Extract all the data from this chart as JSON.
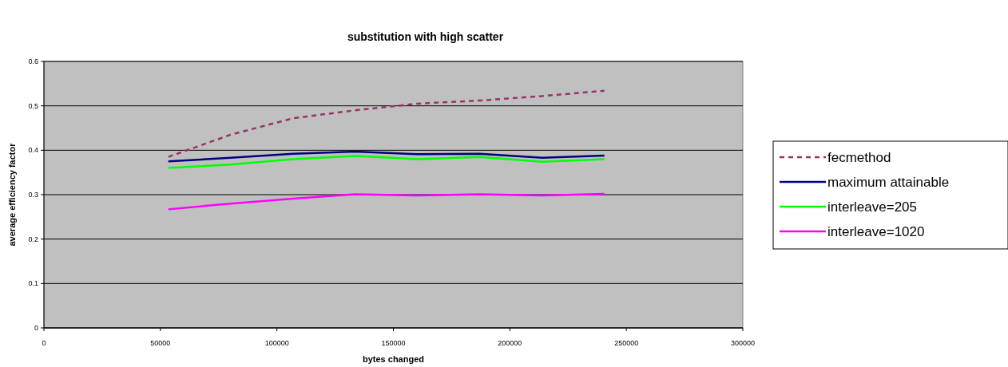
{
  "chart_data": {
    "type": "line",
    "title": "substitution with high scatter",
    "xlabel": "bytes changed",
    "ylabel": "average efficiency factor",
    "x": [
      53400,
      80100,
      106900,
      133600,
      160400,
      187100,
      213900,
      240600
    ],
    "series": [
      {
        "name": "fecmethod",
        "color": "#993366",
        "line_style": "dashed",
        "values": [
          0.385,
          0.435,
          0.472,
          0.49,
          0.505,
          0.512,
          0.522,
          0.534
        ]
      },
      {
        "name": "maximum attainable",
        "color": "#000080",
        "values": [
          0.375,
          0.383,
          0.392,
          0.397,
          0.391,
          0.392,
          0.383,
          0.388
        ]
      },
      {
        "name": "interleave=205",
        "color": "#00ff00",
        "values": [
          0.36,
          0.368,
          0.38,
          0.387,
          0.38,
          0.385,
          0.374,
          0.38
        ]
      },
      {
        "name": "interleave=1020",
        "color": "#ff00ff",
        "values": [
          0.267,
          0.28,
          0.291,
          0.301,
          0.298,
          0.301,
          0.298,
          0.302
        ]
      }
    ],
    "xlim": [
      0,
      300000
    ],
    "xticks": [
      0,
      50000,
      100000,
      150000,
      200000,
      250000,
      300000
    ],
    "ylim": [
      0,
      0.6
    ],
    "yticks": [
      0,
      0.1,
      0.2,
      0.3,
      0.4,
      0.5,
      0.6
    ],
    "grid": "y",
    "legend": "right",
    "marker": "none"
  }
}
